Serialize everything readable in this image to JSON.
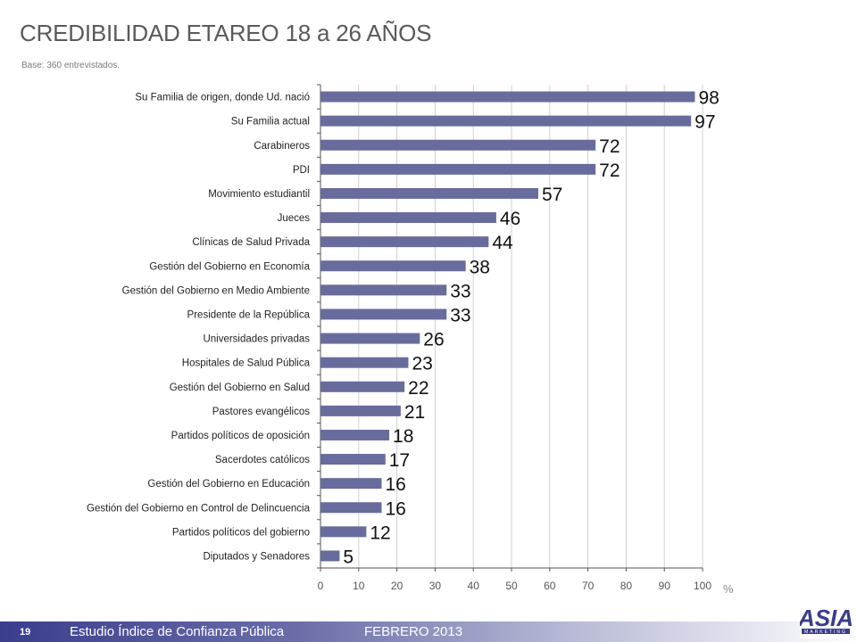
{
  "header": {
    "title": "CREDIBILIDAD ETAREO 18 a 26 AÑOS",
    "base": "Base:  360 entrevistados."
  },
  "chart_data": {
    "type": "bar",
    "orientation": "horizontal",
    "categories": [
      "Su Familia de origen, donde Ud. nació",
      "Su Familia actual",
      "Carabineros",
      "PDI",
      "Movimiento estudiantil",
      "Jueces",
      "Clínicas de Salud Privada",
      "Gestión del Gobierno en Economía",
      "Gestión del Gobierno en Medio Ambiente",
      "Presidente de la República",
      "Universidades privadas",
      "Hospitales de Salud Pública",
      "Gestión del Gobierno en Salud",
      "Pastores evangélicos",
      "Partidos políticos de oposición",
      "Sacerdotes católicos",
      "Gestión del Gobierno en Educación",
      "Gestión del Gobierno en Control de Delincuencia",
      "Partidos políticos del gobierno",
      "Diputados y Senadores"
    ],
    "values": [
      98,
      97,
      72,
      72,
      57,
      46,
      44,
      38,
      33,
      33,
      26,
      23,
      22,
      21,
      18,
      17,
      16,
      16,
      12,
      5
    ],
    "xlim": [
      0,
      100
    ],
    "xticks": [
      0,
      10,
      20,
      30,
      40,
      50,
      60,
      70,
      80,
      90,
      100
    ],
    "xlabel": "%",
    "grid": true,
    "bar_color": "#686b9c"
  },
  "footer": {
    "page_number": "19",
    "study": "Estudio  Índice de Confianza Pública",
    "date": "FEBRERO 2013"
  },
  "logo": {
    "text": "ASIA",
    "subtext": "MARKETING"
  }
}
